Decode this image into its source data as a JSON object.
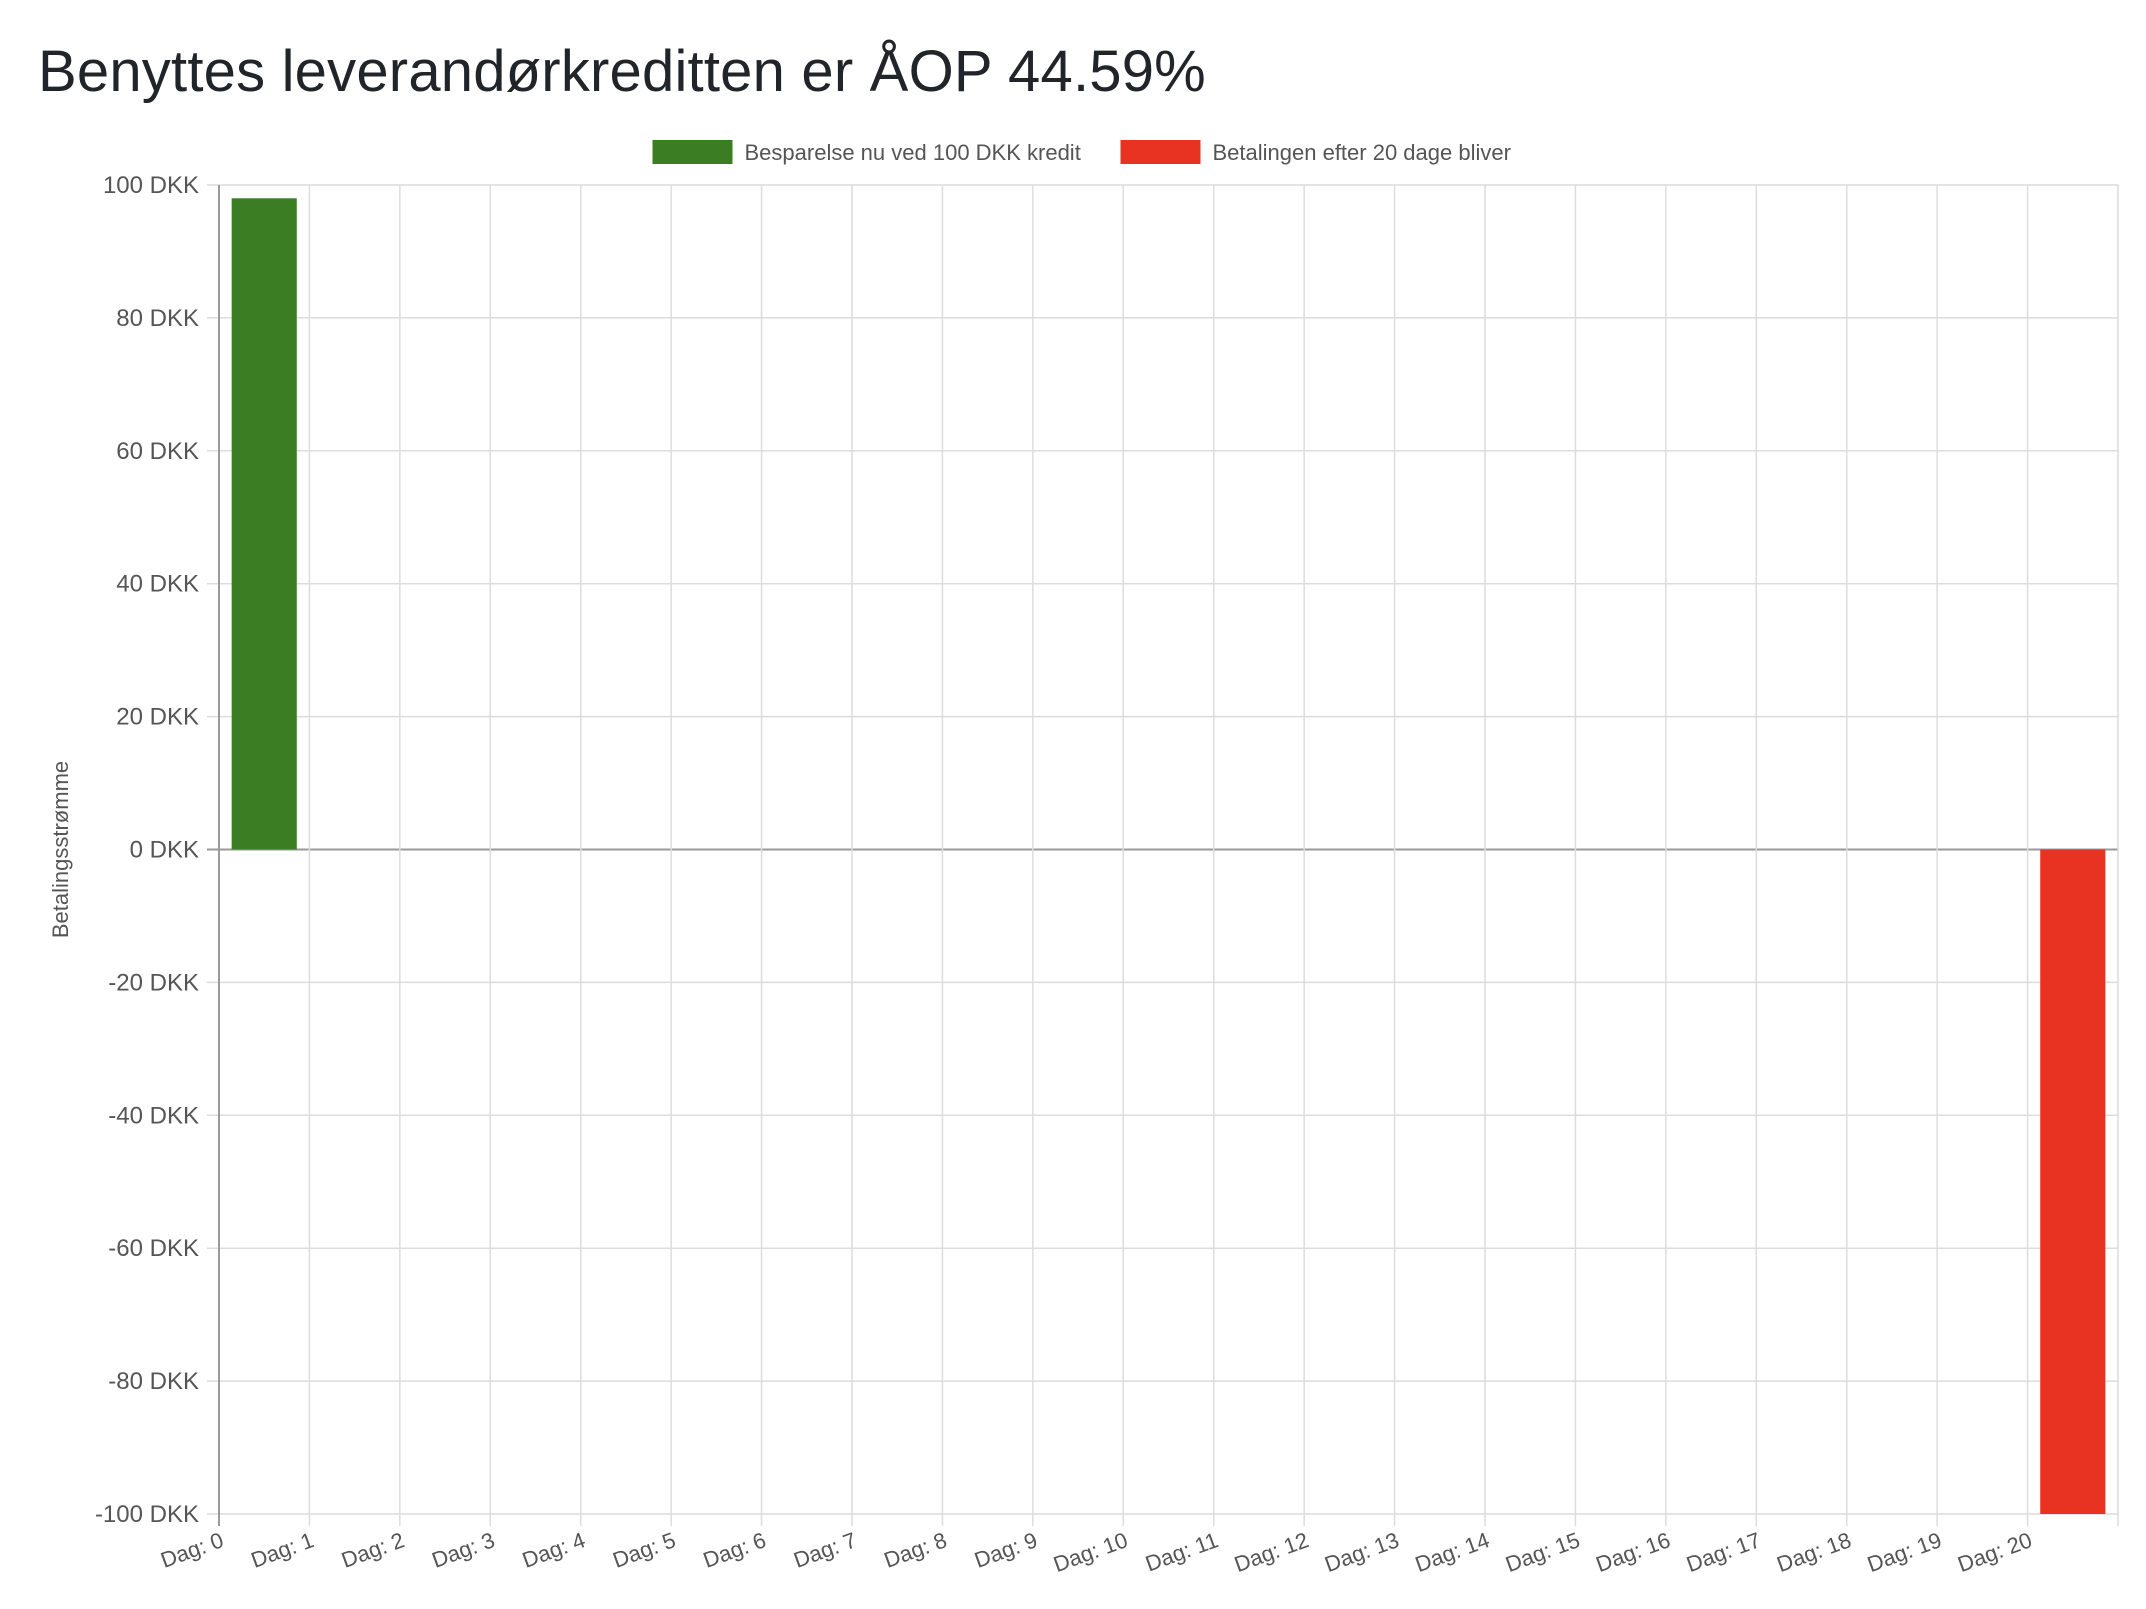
{
  "title": "Benyttes leverandørkreditten er ÅOP 44.59%",
  "chart_data": {
    "type": "bar",
    "categories": [
      "Dag: 0",
      "Dag: 1",
      "Dag: 2",
      "Dag: 3",
      "Dag: 4",
      "Dag: 5",
      "Dag: 6",
      "Dag: 7",
      "Dag: 8",
      "Dag: 9",
      "Dag: 10",
      "Dag: 11",
      "Dag: 12",
      "Dag: 13",
      "Dag: 14",
      "Dag: 15",
      "Dag: 16",
      "Dag: 17",
      "Dag: 18",
      "Dag: 19",
      "Dag: 20"
    ],
    "series": [
      {
        "name": "Besparelse nu ved 100 DKK kredit",
        "color": "#3a7d22",
        "values": [
          98,
          null,
          null,
          null,
          null,
          null,
          null,
          null,
          null,
          null,
          null,
          null,
          null,
          null,
          null,
          null,
          null,
          null,
          null,
          null,
          null
        ]
      },
      {
        "name": "Betalingen efter 20 dage bliver",
        "color": "#e83323",
        "values": [
          null,
          null,
          null,
          null,
          null,
          null,
          null,
          null,
          null,
          null,
          null,
          null,
          null,
          null,
          null,
          null,
          null,
          null,
          null,
          null,
          -100
        ]
      }
    ],
    "ylabel": "Betalingsstrømme",
    "xlabel": "",
    "ylim": [
      -100,
      100
    ],
    "ytick_step": 20,
    "ytick_suffix": " DKK",
    "grid": true,
    "legend_position": "top-center"
  }
}
